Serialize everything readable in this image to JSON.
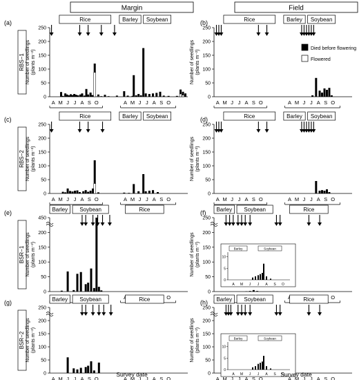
{
  "columns": [
    "Margin",
    "Field"
  ],
  "rows": [
    "RBS−1",
    "RBS−2",
    "BSR−1",
    "BSR−2"
  ],
  "panel_letters": [
    "(a)",
    "(b)",
    "(c)",
    "(d)",
    "(e)",
    "(f)",
    "(g)",
    "(h)"
  ],
  "ylabel_line1": "Number of seedlings",
  "ylabel_line2": "(plants m⁻²)",
  "xlabel": "Survey date",
  "years": [
    "2016",
    "2017"
  ],
  "months": [
    "A",
    "M",
    "J",
    "J",
    "A",
    "S",
    "O"
  ],
  "crops": {
    "rice": "Rice",
    "barley": "Barley",
    "soybean": "Soybean"
  },
  "legend": {
    "died": "Died before flowering",
    "flowered": "Flowered"
  },
  "colors": {
    "died": "#000000",
    "flowered": "#ffffff",
    "axis": "#000000",
    "box_fill": "#ffffff"
  },
  "chart_data": [
    {
      "panel": "(a)",
      "location": "Margin",
      "row": "RBS−1",
      "type": "bar",
      "ylim": [
        0,
        250
      ],
      "yticks": [
        0,
        50,
        100,
        150,
        200,
        250
      ],
      "series": [
        {
          "name": "Died before flowering",
          "x": [
            0.95,
            1.1,
            1.3,
            1.45,
            1.6,
            1.75,
            1.9,
            2.05,
            2.2,
            2.35,
            2.55,
            2.7,
            2.9,
            3.05,
            3.2,
            3.4,
            3.55,
            3.75,
            4.05,
            4.3,
            4.6,
            4.9,
            5.2,
            5.6,
            6.2,
            6.5,
            6.9,
            7.0,
            7.2,
            7.4,
            7.6,
            7.8,
            8.0,
            8.3,
            8.6,
            8.9,
            9.2,
            9.5,
            9.9,
            10.6,
            10.9,
            11.1,
            11.3
          ],
          "values": [
            17,
            3,
            12,
            8,
            5,
            9,
            6,
            10,
            7,
            5,
            8,
            12,
            4,
            28,
            8,
            15,
            6,
            120,
            8,
            2,
            7,
            2,
            0,
            4,
            20,
            4,
            3,
            78,
            5,
            10,
            5,
            176,
            12,
            10,
            12,
            14,
            18,
            4,
            3,
            3,
            26,
            18,
            12
          ]
        },
        {
          "name": "Flowered",
          "x": [
            3.75,
            4.05,
            10.9,
            11.1
          ],
          "values": [
            88,
            2,
            10,
            6
          ]
        }
      ],
      "arrows": [
        0.15,
        2.5,
        3.2,
        4.3,
        5.4
      ]
    },
    {
      "panel": "(b)",
      "location": "Field",
      "row": "RBS−1",
      "type": "bar",
      "ylim": [
        0,
        250
      ],
      "yticks": [
        0,
        50,
        100,
        150,
        200,
        250
      ],
      "series": [
        {
          "name": "Died before flowering",
          "x": [
            8.2,
            8.5,
            8.8,
            9.0,
            9.2,
            9.4,
            9.6,
            9.8
          ],
          "values": [
            5,
            68,
            22,
            15,
            30,
            25,
            32,
            5
          ]
        },
        {
          "name": "Flowered",
          "x": [],
          "values": []
        }
      ],
      "arrows": [
        0.2,
        0.4,
        0.6,
        3.7,
        4.4,
        7.3,
        7.5,
        7.7,
        7.9,
        8.1,
        8.3
      ]
    },
    {
      "panel": "(c)",
      "location": "Margin",
      "row": "RBS−2",
      "type": "bar",
      "ylim": [
        0,
        250
      ],
      "yticks": [
        0,
        50,
        100,
        150,
        200,
        250
      ],
      "series": [
        {
          "name": "Died before flowering",
          "x": [
            1.1,
            1.3,
            1.5,
            1.7,
            1.9,
            2.1,
            2.3,
            2.5,
            2.8,
            3.0,
            3.2,
            3.4,
            3.6,
            3.75,
            4.05,
            6.2,
            6.6,
            7.0,
            7.4,
            7.8,
            8.0,
            8.3,
            8.6,
            9.0
          ],
          "values": [
            6,
            4,
            18,
            9,
            7,
            10,
            11,
            5,
            8,
            12,
            6,
            10,
            18,
            120,
            4,
            3,
            2,
            34,
            8,
            70,
            8,
            10,
            12,
            5
          ]
        },
        {
          "name": "Flowered",
          "x": [
            3.75
          ],
          "values": [
            36
          ]
        }
      ],
      "arrows": [
        0.15,
        2.5,
        3.2,
        4.4
      ]
    },
    {
      "panel": "(d)",
      "location": "Field",
      "row": "RBS−2",
      "type": "bar",
      "ylim": [
        0,
        250
      ],
      "yticks": [
        0,
        50,
        100,
        150,
        200,
        250
      ],
      "series": [
        {
          "name": "Died before flowering",
          "x": [
            8.5,
            8.8,
            9.0,
            9.2,
            9.4,
            9.6
          ],
          "values": [
            45,
            10,
            12,
            10,
            15,
            5
          ]
        },
        {
          "name": "Flowered",
          "x": [],
          "values": []
        }
      ],
      "arrows": [
        0.2,
        0.4,
        0.6,
        3.7,
        4.4,
        7.3,
        7.5,
        7.7,
        7.9,
        8.1,
        8.3
      ]
    },
    {
      "panel": "(e)",
      "location": "Margin",
      "row": "BSR−1",
      "type": "bar",
      "ylim": [
        0,
        450
      ],
      "yticks": [
        0,
        50,
        100,
        150,
        200,
        450
      ],
      "axis_break": [
        225,
        425
      ],
      "series": [
        {
          "name": "Died before flowering",
          "x": [
            1.0,
            1.5,
            2.0,
            2.3,
            2.6,
            3.0,
            3.2,
            3.45,
            3.7,
            3.9,
            4.1,
            4.3
          ],
          "values": [
            3,
            68,
            5,
            60,
            66,
            25,
            30,
            78,
            12,
            450,
            16,
            4
          ]
        },
        {
          "name": "Flowered",
          "x": [],
          "values": []
        }
      ],
      "arrows": [
        2.7,
        3.0,
        3.6,
        4.0,
        4.4,
        5.0
      ]
    },
    {
      "panel": "(f)",
      "location": "Field",
      "row": "BSR−1",
      "type": "bar",
      "ylim": [
        0,
        250
      ],
      "yticks": [
        0,
        50,
        100,
        150,
        200,
        250
      ],
      "axis_break": [
        225,
        240
      ],
      "series": [
        {
          "name": "Died before flowering",
          "x": [
            2.7,
            3.0,
            3.3,
            3.6
          ],
          "values": [
            1,
            2,
            5,
            2
          ]
        },
        {
          "name": "Flowered",
          "x": [],
          "values": []
        }
      ],
      "inset": {
        "ylim": [
          0,
          12
        ],
        "yticks": [
          0,
          5,
          10
        ],
        "x": [
          3.3,
          3.5,
          3.7,
          3.85,
          4.0,
          4.1,
          4.3,
          4.6
        ],
        "values": [
          1,
          1.5,
          2,
          2.5,
          3,
          7,
          1.5,
          0.5
        ]
      },
      "arrows": [
        1.0,
        1.3,
        1.6,
        2.0,
        2.3,
        2.6,
        3.0,
        5.2,
        5.5,
        7.9,
        8.8
      ]
    },
    {
      "panel": "(g)",
      "location": "Margin",
      "row": "BSR−2",
      "type": "bar",
      "ylim": [
        0,
        250
      ],
      "yticks": [
        0,
        50,
        100,
        150,
        200,
        250
      ],
      "axis_break": [
        225,
        240
      ],
      "series": [
        {
          "name": "Died before flowering",
          "x": [
            1.5,
            2.0,
            2.3,
            2.6,
            3.0,
            3.2,
            3.45,
            3.7,
            4.1
          ],
          "values": [
            60,
            18,
            14,
            20,
            23,
            28,
            45,
            10,
            40
          ]
        },
        {
          "name": "Flowered",
          "x": [],
          "values": []
        }
      ],
      "arrows": [
        2.7,
        3.0,
        3.6,
        4.1,
        4.5,
        5.1
      ]
    },
    {
      "panel": "(h)",
      "location": "Field",
      "row": "BSR−2",
      "type": "bar",
      "ylim": [
        0,
        250
      ],
      "yticks": [
        0,
        50,
        100,
        150,
        200,
        250
      ],
      "axis_break": [
        225,
        240
      ],
      "series": [
        {
          "name": "Died before flowering",
          "x": [
            3.2,
            3.5,
            3.8
          ],
          "values": [
            1,
            2,
            1
          ]
        },
        {
          "name": "Flowered",
          "x": [],
          "values": []
        }
      ],
      "inset": {
        "ylim": [
          0,
          12
        ],
        "yticks": [
          0,
          5,
          10
        ],
        "x": [
          3.3,
          3.5,
          3.7,
          3.85,
          4.0,
          4.1,
          4.3,
          4.6
        ],
        "values": [
          1,
          1.5,
          2.5,
          3,
          3.5,
          6,
          1.5,
          0.5
        ]
      },
      "arrows": [
        1.0,
        1.2,
        1.4,
        2.0,
        2.3,
        2.6,
        3.0,
        5.2,
        5.5,
        7.9,
        8.8
      ]
    }
  ]
}
